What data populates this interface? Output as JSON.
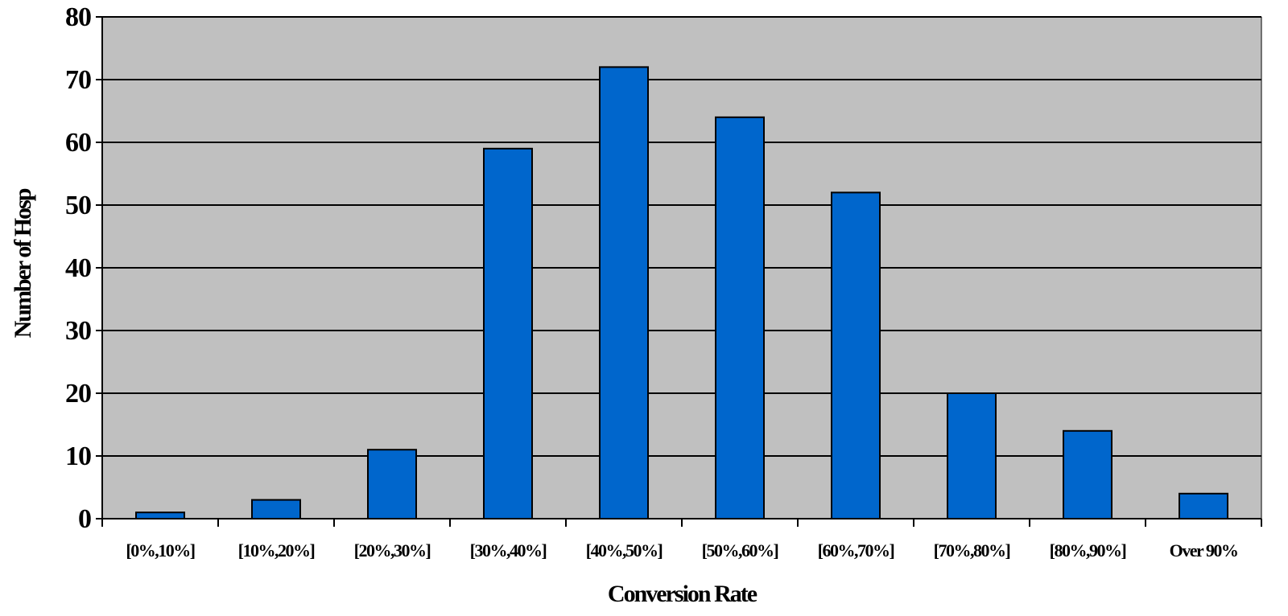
{
  "chart_data": {
    "type": "bar",
    "title": "",
    "xlabel": "Conversion Rate",
    "ylabel": "Number of Hosp",
    "categories": [
      "[0%,10%]",
      "[10%,20%]",
      "[20%,30%]",
      "[30%,40%]",
      "[40%,50%]",
      "[50%,60%]",
      "[60%,70%]",
      "[70%,80%]",
      "[80%,90%]",
      "Over 90%"
    ],
    "values": [
      1,
      3,
      11,
      59,
      72,
      64,
      52,
      20,
      14,
      4
    ],
    "ylim": [
      0,
      80
    ],
    "yticks": [
      "0",
      "10",
      "20",
      "30",
      "40",
      "50",
      "60",
      "70",
      "80"
    ],
    "grid": true,
    "legend": "none",
    "colors": {
      "bar": "#0066CC",
      "plot_background": "#C0C0C0",
      "gridline": "#000000"
    }
  }
}
